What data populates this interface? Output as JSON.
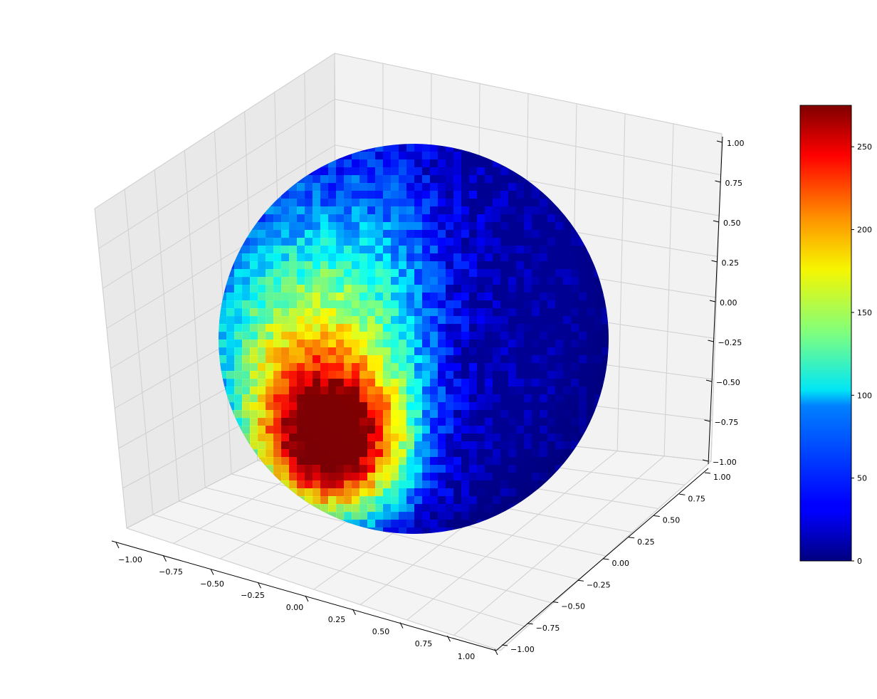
{
  "chart_data": {
    "type": "surface",
    "title": "",
    "xlabel": "",
    "ylabel": "",
    "zlabel": "",
    "xlim": [
      -1.0,
      1.0
    ],
    "ylim": [
      -1.0,
      1.0
    ],
    "zlim": [
      -1.0,
      1.0
    ],
    "x_ticks": [
      "−1.00",
      "−0.75",
      "−0.50",
      "−0.25",
      "0.00",
      "0.25",
      "0.50",
      "0.75",
      "1.00"
    ],
    "y_ticks": [
      "−1.00",
      "−0.75",
      "−0.50",
      "−0.25",
      "0.00",
      "0.25",
      "0.50",
      "0.75",
      "1.00"
    ],
    "z_ticks": [
      "−1.00",
      "−0.75",
      "−0.50",
      "−0.25",
      "0.00",
      "0.25",
      "0.50",
      "0.75",
      "1.00"
    ],
    "grid": true,
    "surface": "unit sphere colored by per-patch count (noisy); hotspot on lower front-left, near zero on the right/back hemisphere",
    "colormap": "jet",
    "colorbar": {
      "range": [
        0,
        275
      ],
      "ticks": [
        0,
        50,
        100,
        150,
        200,
        250
      ],
      "tick_labels": [
        "0",
        "50",
        "100",
        "150",
        "200",
        "250"
      ],
      "placement": "right"
    },
    "colors": {
      "jet_low": "#00007f",
      "jet_mid": "#7fff7f",
      "jet_high": "#7f0000"
    }
  }
}
